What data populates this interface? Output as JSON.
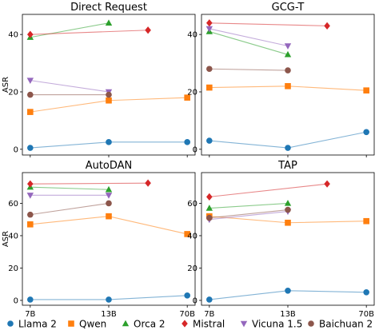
{
  "chart_data": {
    "type": "line",
    "categories": [
      "7B",
      "13B",
      "70B"
    ],
    "ylabel": "ASR",
    "legend": {
      "placement": "bottom",
      "entries": [
        "Llama 2",
        "Qwen",
        "Orca 2",
        "Mistral",
        "Vicuna 1.5",
        "Baichuan 2"
      ]
    },
    "series_styles": [
      {
        "name": "Llama 2",
        "color": "#1f77b4",
        "marker": "circle"
      },
      {
        "name": "Qwen",
        "color": "#ff7f0e",
        "marker": "square"
      },
      {
        "name": "Orca 2",
        "color": "#2ca02c",
        "marker": "triangle-up"
      },
      {
        "name": "Mistral",
        "color": "#d62728",
        "marker": "diamond"
      },
      {
        "name": "Vicuna 1.5",
        "color": "#9467bd",
        "marker": "triangle-down"
      },
      {
        "name": "Baichuan 2",
        "color": "#8c564b",
        "marker": "circle"
      }
    ],
    "panels": [
      {
        "title": "Direct Request",
        "ylim": [
          -2,
          47
        ],
        "yticks": [
          0,
          20,
          40
        ],
        "series": [
          {
            "name": "Llama 2",
            "x": [
              0,
              1,
              2
            ],
            "values": [
              0.5,
              2.5,
              2.5
            ]
          },
          {
            "name": "Qwen",
            "x": [
              0,
              1,
              2
            ],
            "values": [
              13,
              17,
              18
            ]
          },
          {
            "name": "Orca 2",
            "x": [
              0,
              1
            ],
            "values": [
              39,
              44
            ]
          },
          {
            "name": "Mistral",
            "x": [
              0,
              1.5
            ],
            "values": [
              40,
              41.5
            ]
          },
          {
            "name": "Vicuna 1.5",
            "x": [
              0,
              1
            ],
            "values": [
              24,
              20
            ]
          },
          {
            "name": "Baichuan 2",
            "x": [
              0,
              1
            ],
            "values": [
              19,
              19
            ]
          }
        ]
      },
      {
        "title": "GCG-T",
        "ylim": [
          -2,
          47
        ],
        "yticks": [
          0,
          20,
          40
        ],
        "series": [
          {
            "name": "Llama 2",
            "x": [
              0,
              1,
              2
            ],
            "values": [
              3,
              0.5,
              6
            ]
          },
          {
            "name": "Qwen",
            "x": [
              0,
              1,
              2
            ],
            "values": [
              21.5,
              22,
              20.5
            ]
          },
          {
            "name": "Orca 2",
            "x": [
              0,
              1
            ],
            "values": [
              41,
              33
            ]
          },
          {
            "name": "Mistral",
            "x": [
              0,
              1.5
            ],
            "values": [
              44,
              43
            ]
          },
          {
            "name": "Vicuna 1.5",
            "x": [
              0,
              1
            ],
            "values": [
              42,
              36
            ]
          },
          {
            "name": "Baichuan 2",
            "x": [
              0,
              1
            ],
            "values": [
              28,
              27.5
            ]
          }
        ]
      },
      {
        "title": "AutoDAN",
        "ylim": [
          -3,
          79
        ],
        "yticks": [
          0,
          20,
          40,
          60
        ],
        "series": [
          {
            "name": "Llama 2",
            "x": [
              0,
              1,
              2
            ],
            "values": [
              0.5,
              0.5,
              3
            ]
          },
          {
            "name": "Qwen",
            "x": [
              0,
              1,
              2
            ],
            "values": [
              47,
              52,
              41
            ]
          },
          {
            "name": "Orca 2",
            "x": [
              0,
              1
            ],
            "values": [
              70,
              68.5
            ]
          },
          {
            "name": "Mistral",
            "x": [
              0,
              1.5
            ],
            "values": [
              72,
              72.5
            ]
          },
          {
            "name": "Vicuna 1.5",
            "x": [
              0,
              1
            ],
            "values": [
              65,
              65
            ]
          },
          {
            "name": "Baichuan 2",
            "x": [
              0,
              1
            ],
            "values": [
              53,
              60
            ]
          }
        ]
      },
      {
        "title": "TAP",
        "ylim": [
          -3,
          79
        ],
        "yticks": [
          0,
          20,
          40,
          60
        ],
        "series": [
          {
            "name": "Llama 2",
            "x": [
              0,
              1,
              2
            ],
            "values": [
              0.5,
              6,
              5
            ]
          },
          {
            "name": "Qwen",
            "x": [
              0,
              1,
              2
            ],
            "values": [
              52,
              48,
              49
            ]
          },
          {
            "name": "Orca 2",
            "x": [
              0,
              1
            ],
            "values": [
              57,
              60
            ]
          },
          {
            "name": "Mistral",
            "x": [
              0,
              1.5
            ],
            "values": [
              64,
              72
            ]
          },
          {
            "name": "Vicuna 1.5",
            "x": [
              0,
              1
            ],
            "values": [
              50,
              55
            ]
          },
          {
            "name": "Baichuan 2",
            "x": [
              0,
              1
            ],
            "values": [
              51,
              56
            ]
          }
        ]
      }
    ]
  }
}
